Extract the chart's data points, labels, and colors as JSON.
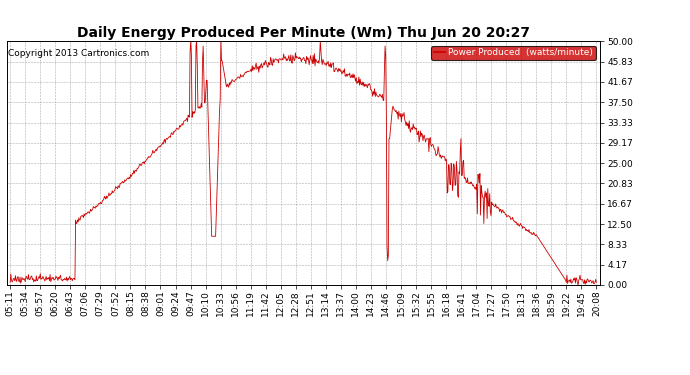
{
  "title": "Daily Energy Produced Per Minute (Wm) Thu Jun 20 20:27",
  "copyright": "Copyright 2013 Cartronics.com",
  "legend_label": "Power Produced  (watts/minute)",
  "legend_bg": "#cc0000",
  "legend_text_color": "#ffffff",
  "line_color": "#cc0000",
  "background_color": "#ffffff",
  "grid_color": "#999999",
  "yticks": [
    0.0,
    4.17,
    8.33,
    12.5,
    16.67,
    20.83,
    25.0,
    29.17,
    33.33,
    37.5,
    41.67,
    45.83,
    50.0
  ],
  "ylim": [
    0,
    50
  ],
  "xtick_labels": [
    "05:11",
    "05:34",
    "05:57",
    "06:20",
    "06:43",
    "07:06",
    "07:29",
    "07:52",
    "08:15",
    "08:38",
    "09:01",
    "09:24",
    "09:47",
    "10:10",
    "10:33",
    "10:56",
    "11:19",
    "11:42",
    "12:05",
    "12:28",
    "12:51",
    "13:14",
    "13:37",
    "14:00",
    "14:23",
    "14:46",
    "15:09",
    "15:32",
    "15:55",
    "16:18",
    "16:41",
    "17:04",
    "17:27",
    "17:50",
    "18:13",
    "18:36",
    "18:59",
    "19:22",
    "19:45",
    "20:08"
  ],
  "title_fontsize": 10,
  "tick_fontsize": 6.5,
  "copyright_fontsize": 6.5
}
